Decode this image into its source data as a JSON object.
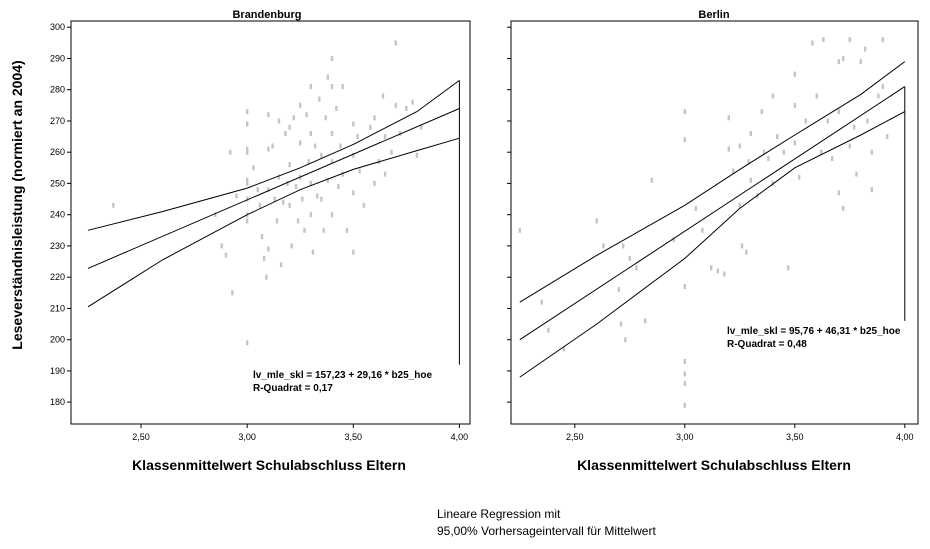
{
  "legend": {
    "line1": "Lineare Regression mit",
    "line2": "95,00% Vorhersageintervall für Mittelwert"
  },
  "chart_data": {
    "type": "scatter",
    "ylabel": "Leseverständnisleistung (normiert an 2004)",
    "xlabel": "Klassenmittelwert Schulabschluss Eltern",
    "ylim": [
      173,
      302
    ],
    "y_ticks": [
      180,
      190,
      200,
      210,
      220,
      230,
      240,
      250,
      260,
      270,
      280,
      290,
      300
    ],
    "x_ticks": [
      2.5,
      3.0,
      3.5,
      4.0
    ],
    "x_tick_labels": [
      "2,50",
      "3,00",
      "3,50",
      "4,00"
    ],
    "grid": false,
    "point_color": "#c4c4c4",
    "line_color": "#000000",
    "panels": [
      {
        "title": "Brandenburg",
        "xlim": [
          2.17,
          4.05
        ],
        "fit": {
          "x": [
            2.25,
            4.0
          ],
          "y": [
            222.8,
            274.0
          ]
        },
        "ci_upper": {
          "x": [
            2.25,
            2.6,
            3.0,
            3.25,
            3.5,
            3.8,
            4.0
          ],
          "y": [
            235.0,
            241.0,
            248.5,
            255.0,
            262.5,
            273.0,
            283.0
          ]
        },
        "ci_lower": {
          "x": [
            2.25,
            2.6,
            3.0,
            3.25,
            3.5,
            3.8,
            4.0
          ],
          "y": [
            210.5,
            225.5,
            240.0,
            248.0,
            254.5,
            260.5,
            264.5
          ]
        },
        "drop": {
          "x": [
            4.0,
            4.0
          ],
          "y": [
            283.0,
            192.0
          ]
        },
        "equation": "lv_mle_skl = 157,23 + 29,16 * b25_hoe",
        "r_squared": "R-Quadrat = 0,17",
        "points": [
          [
            2.37,
            243
          ],
          [
            2.85,
            240
          ],
          [
            2.88,
            230
          ],
          [
            2.9,
            227
          ],
          [
            2.92,
            260
          ],
          [
            2.93,
            215
          ],
          [
            2.95,
            246
          ],
          [
            3.0,
            273
          ],
          [
            3.0,
            269
          ],
          [
            3.0,
            261
          ],
          [
            3.0,
            260
          ],
          [
            3.0,
            251
          ],
          [
            3.0,
            250
          ],
          [
            3.0,
            245
          ],
          [
            3.0,
            240
          ],
          [
            3.0,
            238
          ],
          [
            3.0,
            199
          ],
          [
            3.03,
            255
          ],
          [
            3.05,
            248
          ],
          [
            3.06,
            243
          ],
          [
            3.07,
            233
          ],
          [
            3.08,
            226
          ],
          [
            3.09,
            220
          ],
          [
            3.1,
            272
          ],
          [
            3.1,
            261
          ],
          [
            3.1,
            248
          ],
          [
            3.1,
            229
          ],
          [
            3.12,
            262
          ],
          [
            3.13,
            245
          ],
          [
            3.14,
            238
          ],
          [
            3.15,
            270
          ],
          [
            3.15,
            252
          ],
          [
            3.16,
            224
          ],
          [
            3.17,
            244
          ],
          [
            3.18,
            266
          ],
          [
            3.19,
            250
          ],
          [
            3.2,
            268
          ],
          [
            3.2,
            256
          ],
          [
            3.2,
            243
          ],
          [
            3.21,
            230
          ],
          [
            3.22,
            271
          ],
          [
            3.23,
            249
          ],
          [
            3.24,
            238
          ],
          [
            3.25,
            275
          ],
          [
            3.25,
            263
          ],
          [
            3.25,
            252
          ],
          [
            3.26,
            245
          ],
          [
            3.27,
            235
          ],
          [
            3.28,
            272
          ],
          [
            3.29,
            257
          ],
          [
            3.3,
            281
          ],
          [
            3.3,
            266
          ],
          [
            3.3,
            250
          ],
          [
            3.3,
            240
          ],
          [
            3.31,
            228
          ],
          [
            3.32,
            262
          ],
          [
            3.33,
            246
          ],
          [
            3.34,
            277
          ],
          [
            3.35,
            259
          ],
          [
            3.35,
            245
          ],
          [
            3.36,
            235
          ],
          [
            3.37,
            271
          ],
          [
            3.38,
            284
          ],
          [
            3.38,
            251
          ],
          [
            3.4,
            290
          ],
          [
            3.4,
            281
          ],
          [
            3.4,
            266
          ],
          [
            3.4,
            257
          ],
          [
            3.4,
            240
          ],
          [
            3.42,
            274
          ],
          [
            3.43,
            249
          ],
          [
            3.44,
            262
          ],
          [
            3.45,
            281
          ],
          [
            3.45,
            253
          ],
          [
            3.47,
            235
          ],
          [
            3.5,
            269
          ],
          [
            3.5,
            259
          ],
          [
            3.5,
            247
          ],
          [
            3.5,
            228
          ],
          [
            3.52,
            265
          ],
          [
            3.53,
            254
          ],
          [
            3.55,
            243
          ],
          [
            3.58,
            268
          ],
          [
            3.6,
            271
          ],
          [
            3.6,
            250
          ],
          [
            3.62,
            257
          ],
          [
            3.64,
            278
          ],
          [
            3.65,
            265
          ],
          [
            3.65,
            253
          ],
          [
            3.68,
            260
          ],
          [
            3.7,
            295
          ],
          [
            3.7,
            275
          ],
          [
            3.72,
            266
          ],
          [
            3.75,
            274
          ],
          [
            3.78,
            276
          ],
          [
            3.8,
            259
          ],
          [
            3.82,
            268
          ]
        ]
      },
      {
        "title": "Berlin",
        "xlim": [
          2.21,
          4.06
        ],
        "fit": {
          "x": [
            2.25,
            4.0
          ],
          "y": [
            200.0,
            281.0
          ]
        },
        "ci_upper": {
          "x": [
            2.25,
            2.6,
            3.0,
            3.25,
            3.5,
            3.8,
            4.0
          ],
          "y": [
            212.0,
            227.0,
            243.0,
            254.5,
            265.5,
            278.5,
            289.0
          ]
        },
        "ci_lower": {
          "x": [
            2.25,
            2.6,
            3.0,
            3.25,
            3.5,
            3.8,
            4.0
          ],
          "y": [
            188.0,
            205.0,
            226.0,
            242.0,
            255.0,
            265.5,
            273.0
          ]
        },
        "drop": {
          "x": [
            4.0,
            4.0
          ],
          "y": [
            281.0,
            206.0
          ]
        },
        "equation": "lv_mle_skl = 95,76 + 46,31 * b25_hoe",
        "r_squared": "R-Quadrat = 0,48",
        "points": [
          [
            2.25,
            235
          ],
          [
            2.35,
            212
          ],
          [
            2.38,
            203
          ],
          [
            2.45,
            197
          ],
          [
            2.6,
            238
          ],
          [
            2.63,
            230
          ],
          [
            2.7,
            216
          ],
          [
            2.71,
            205
          ],
          [
            2.72,
            230
          ],
          [
            2.73,
            200
          ],
          [
            2.75,
            226
          ],
          [
            2.78,
            223
          ],
          [
            2.82,
            206
          ],
          [
            2.85,
            251
          ],
          [
            2.95,
            232
          ],
          [
            3.0,
            273
          ],
          [
            3.0,
            264
          ],
          [
            3.0,
            217
          ],
          [
            3.0,
            193
          ],
          [
            3.0,
            189
          ],
          [
            3.0,
            186
          ],
          [
            3.0,
            179
          ],
          [
            3.05,
            242
          ],
          [
            3.08,
            235
          ],
          [
            3.12,
            223
          ],
          [
            3.15,
            222
          ],
          [
            3.18,
            221
          ],
          [
            3.2,
            271
          ],
          [
            3.2,
            261
          ],
          [
            3.22,
            254
          ],
          [
            3.25,
            262
          ],
          [
            3.25,
            243
          ],
          [
            3.26,
            230
          ],
          [
            3.28,
            228
          ],
          [
            3.29,
            257
          ],
          [
            3.3,
            266
          ],
          [
            3.3,
            251
          ],
          [
            3.33,
            246
          ],
          [
            3.35,
            273
          ],
          [
            3.36,
            260
          ],
          [
            3.38,
            258
          ],
          [
            3.4,
            278
          ],
          [
            3.4,
            250
          ],
          [
            3.42,
            265
          ],
          [
            3.45,
            260
          ],
          [
            3.47,
            223
          ],
          [
            3.5,
            285
          ],
          [
            3.5,
            275
          ],
          [
            3.5,
            263
          ],
          [
            3.52,
            252
          ],
          [
            3.55,
            270
          ],
          [
            3.58,
            295
          ],
          [
            3.6,
            278
          ],
          [
            3.62,
            260
          ],
          [
            3.63,
            296
          ],
          [
            3.65,
            270
          ],
          [
            3.67,
            258
          ],
          [
            3.7,
            289
          ],
          [
            3.7,
            273
          ],
          [
            3.7,
            247
          ],
          [
            3.72,
            290
          ],
          [
            3.72,
            242
          ],
          [
            3.75,
            262
          ],
          [
            3.75,
            296
          ],
          [
            3.77,
            268
          ],
          [
            3.78,
            253
          ],
          [
            3.8,
            289
          ],
          [
            3.82,
            293
          ],
          [
            3.83,
            270
          ],
          [
            3.85,
            248
          ],
          [
            3.85,
            260
          ],
          [
            3.88,
            278
          ],
          [
            3.9,
            281
          ],
          [
            3.9,
            296
          ],
          [
            3.92,
            265
          ]
        ]
      }
    ]
  }
}
